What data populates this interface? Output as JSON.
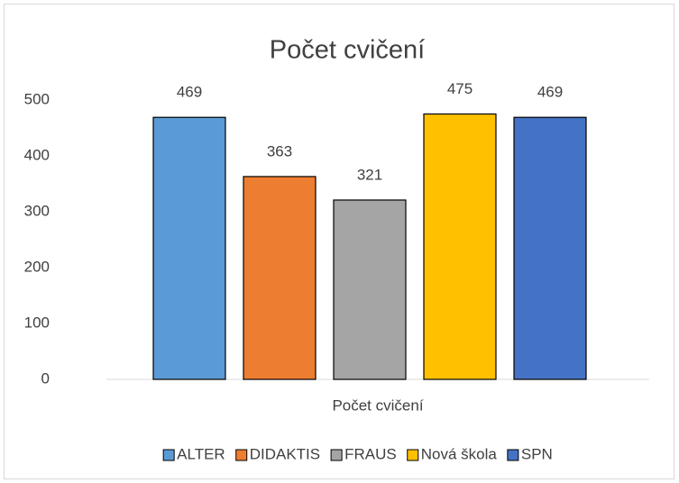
{
  "chart_data": {
    "type": "bar",
    "title": "Počet cvičení",
    "categories": [
      "Počet cvičení"
    ],
    "series": [
      {
        "name": "ALTER",
        "color": "#5b9bd5",
        "values": [
          469
        ]
      },
      {
        "name": "DIDAKTIS",
        "color": "#ed7d31",
        "values": [
          363
        ]
      },
      {
        "name": "FRAUS",
        "color": "#a5a5a5",
        "values": [
          321
        ]
      },
      {
        "name": "Nová škola",
        "color": "#ffc000",
        "values": [
          475
        ]
      },
      {
        "name": "SPN",
        "color": "#4472c4",
        "values": [
          469
        ]
      }
    ],
    "ylim": [
      0,
      500
    ],
    "yticks": [
      0,
      100,
      200,
      300,
      400,
      500
    ],
    "grid": false,
    "legend": "bottom"
  }
}
